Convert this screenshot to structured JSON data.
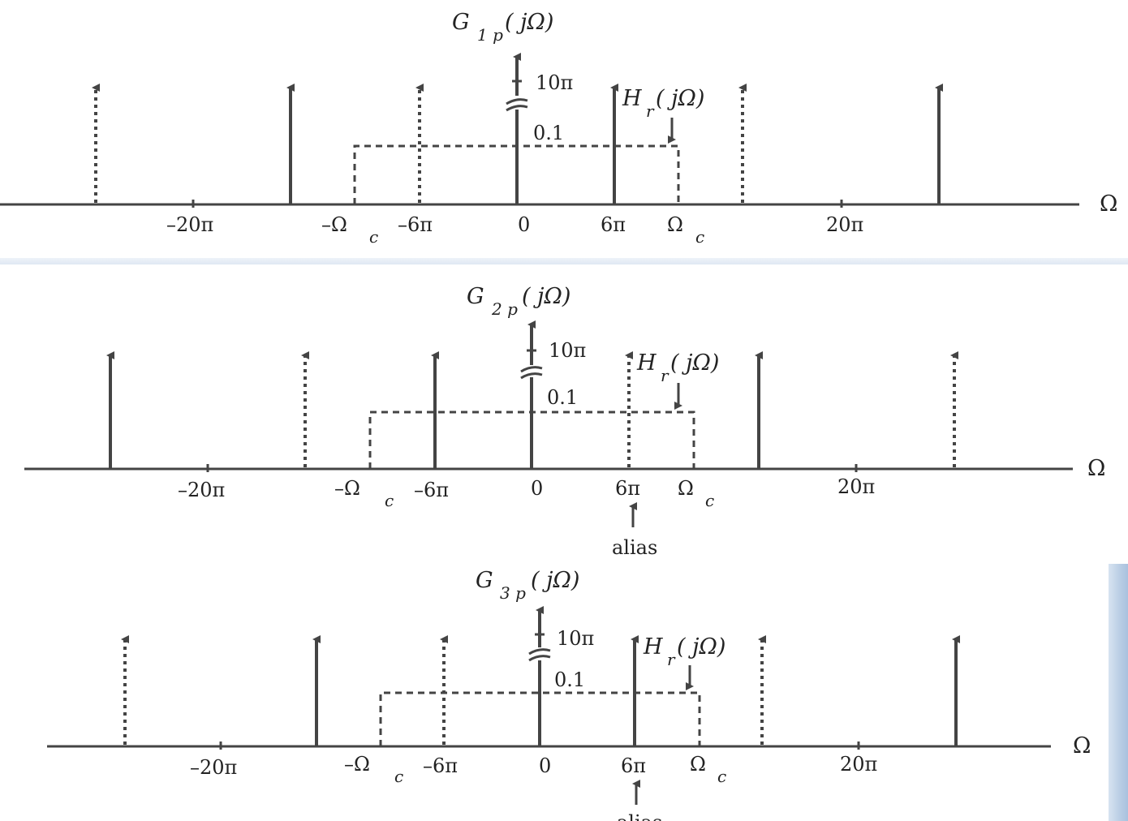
{
  "panels": [
    {
      "title_main": "G",
      "title_sub": "1 p",
      "title_arg": "( jΩ)",
      "impulse_label": "10π",
      "filter_label_main": "H",
      "filter_label_sub": "r",
      "filter_label_arg": "( jΩ)",
      "filter_gain_label": "0.1",
      "axis_label": "Ω",
      "tick_labels": [
        "–20π",
        "–Ω",
        "–6π",
        "0",
        "6π",
        "Ω",
        "20π"
      ],
      "alias_label": ""
    },
    {
      "title_main": "G",
      "title_sub": "2 p",
      "title_arg": "( jΩ)",
      "impulse_label": "10π",
      "filter_label_main": "H",
      "filter_label_sub": "r",
      "filter_label_arg": "( jΩ)",
      "filter_gain_label": "0.1",
      "axis_label": "Ω",
      "tick_labels": [
        "–20π",
        "–Ω",
        "–6π",
        "0",
        "6π",
        "Ω",
        "20π"
      ],
      "alias_label": "alias"
    },
    {
      "title_main": "G",
      "title_sub": "3 p",
      "title_arg": "( jΩ)",
      "impulse_label": "10π",
      "filter_label_main": "H",
      "filter_label_sub": "r",
      "filter_label_arg": "( jΩ)",
      "filter_gain_label": "0.1",
      "axis_label": "Ω",
      "tick_labels": [
        "–20π",
        "–Ω",
        "–6π",
        "0",
        "6π",
        "Ω",
        "20π"
      ],
      "alias_label": "alias"
    }
  ],
  "omega_c_sub": "c",
  "colors": {
    "ink": "#444444",
    "background": "#ffffff",
    "accent": "#b9cde4"
  }
}
